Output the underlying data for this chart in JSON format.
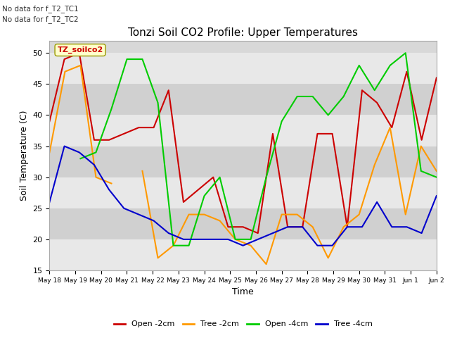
{
  "title": "Tonzi Soil CO2 Profile: Upper Temperatures",
  "xlabel": "Time",
  "ylabel": "Soil Temperature (C)",
  "ylim": [
    15,
    52
  ],
  "yticks": [
    15,
    20,
    25,
    30,
    35,
    40,
    45,
    50
  ],
  "annotations": [
    "No data for f_T2_TC1",
    "No data for f_T2_TC2"
  ],
  "legend_label": "TZ_soilco2",
  "x_labels": [
    "May 18",
    "May 19",
    "May 20",
    "May 21",
    "May 22",
    "May 23",
    "May 24",
    "May 25",
    "May 26",
    "May 27",
    "May 28",
    "May 29",
    "May 30",
    "May 31",
    "Jun 1",
    "Jun 2"
  ],
  "open_2cm": [
    39,
    49,
    50,
    36,
    36,
    37,
    38,
    38,
    44,
    26,
    28,
    30,
    22,
    22,
    21,
    37,
    22,
    22,
    37,
    37,
    22,
    44,
    42,
    38,
    47,
    36,
    46
  ],
  "tree_2cm": [
    34,
    47,
    48,
    30,
    29,
    null,
    31,
    17,
    19,
    24,
    24,
    23,
    20,
    19,
    16,
    24,
    24,
    22,
    17,
    22,
    24,
    32,
    38,
    24,
    35,
    31
  ],
  "open_4cm": [
    null,
    null,
    33,
    34,
    41,
    49,
    49,
    42,
    19,
    19,
    27,
    30,
    20,
    20,
    30,
    39,
    43,
    43,
    40,
    43,
    48,
    44,
    48,
    50,
    31,
    30
  ],
  "tree_4cm": [
    26,
    35,
    34,
    32,
    28,
    25,
    24,
    23,
    21,
    20,
    20,
    20,
    20,
    19,
    20,
    21,
    22,
    22,
    19,
    19,
    22,
    22,
    26,
    22,
    22,
    21,
    27
  ],
  "colors": {
    "open_2cm": "#cc0000",
    "tree_2cm": "#ff9900",
    "open_4cm": "#00cc00",
    "tree_4cm": "#0000cc"
  },
  "bg_color": "#d8d8d8",
  "band_colors": [
    "#e8e8e8",
    "#d0d0d0"
  ]
}
